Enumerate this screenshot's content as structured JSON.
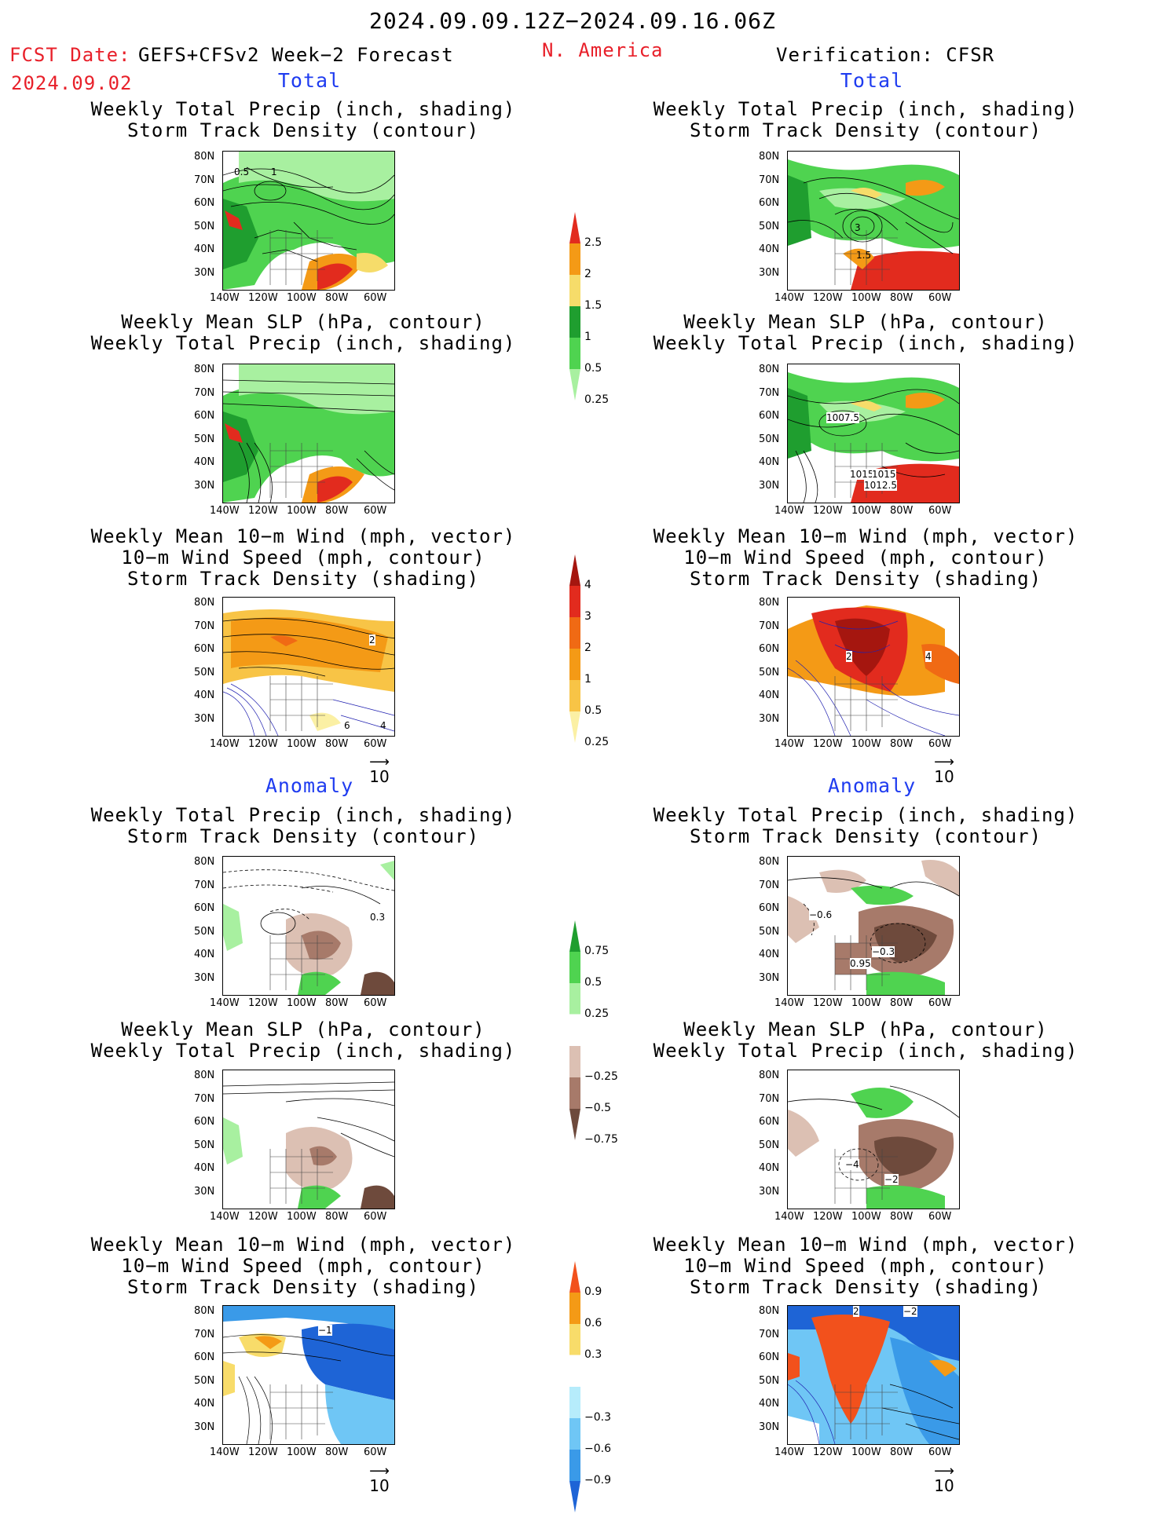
{
  "header": {
    "date_range": "2024.09.09.12Z−2024.09.16.06Z",
    "fcst_date_label": "FCST Date:",
    "fcst_date": "2024.09.02",
    "model": "GEFS+CFSv2 Week−2 Forecast",
    "region": "N. America",
    "verification": "Verification: CFSR"
  },
  "sections": {
    "total": "Total",
    "anomaly": "Anomaly"
  },
  "titles": {
    "precip_track": [
      "Weekly Total Precip (inch, shading)",
      "Storm Track Density (contour)"
    ],
    "slp_precip": [
      "Weekly Mean SLP (hPa, contour)",
      "Weekly Total Precip (inch, shading)"
    ],
    "wind_track": [
      "Weekly Mean 10−m Wind (mph, vector)",
      "10−m Wind Speed (mph, contour)",
      "Storm Track Density (shading)"
    ]
  },
  "axes": {
    "lat": [
      "80N",
      "70N",
      "60N",
      "50N",
      "40N",
      "30N"
    ],
    "lon": [
      "140W",
      "120W",
      "100W",
      "80W",
      "60W"
    ]
  },
  "vector_ref": "10",
  "colorbars": {
    "total_precip": {
      "labels": [
        "2.5",
        "2",
        "1.5",
        "1",
        "0.5",
        "0.25"
      ],
      "colors": [
        "#e22b1e",
        "#f49a16",
        "#f6dc6a",
        "#1f9e2f",
        "#4fd350",
        "#a8f0a0"
      ]
    },
    "total_track": {
      "labels": [
        "4",
        "3",
        "2",
        "1",
        "0.5",
        "0.25"
      ],
      "colors": [
        "#a5160f",
        "#e22b1e",
        "#f06a14",
        "#f49a16",
        "#f8c446",
        "#fbf0a4"
      ]
    },
    "anom_precip": {
      "labels": [
        "0.75",
        "0.5",
        "0.25",
        "−0.25",
        "−0.5",
        "−0.75"
      ],
      "colors": [
        "#1f9e2f",
        "#4fd350",
        "#a8f0a0",
        "#ffffff",
        "#dcc0b3",
        "#a77a6a",
        "#6e4a3c"
      ]
    },
    "anom_track": {
      "labels": [
        "0.9",
        "0.6",
        "0.3",
        "−0.3",
        "−0.6",
        "−0.9"
      ],
      "colors": [
        "#f2511c",
        "#f49a16",
        "#f8dc6a",
        "#ffffff",
        "#b6ecfb",
        "#6fc6f5",
        "#3a9ae8",
        "#1e64d6"
      ]
    }
  },
  "contour_labels": {
    "l1": "0.5",
    "l2": "1",
    "r1": "3",
    "r1b": "1.5",
    "r2a": "1007.5",
    "r2b": "1015",
    "r2c": "1012.5",
    "r2d": "1015",
    "l3": "2",
    "l3b": "6",
    "l3c": "4",
    "r3": "2",
    "r3b": "4",
    "al1": "0.3",
    "ar1": "−0.6",
    "ar1b": "−0.3",
    "ar1c": "0.95",
    "ar2": "−4",
    "ar2b": "−2",
    "al3": "−1",
    "ar3": "2",
    "ar3b": "−2"
  }
}
